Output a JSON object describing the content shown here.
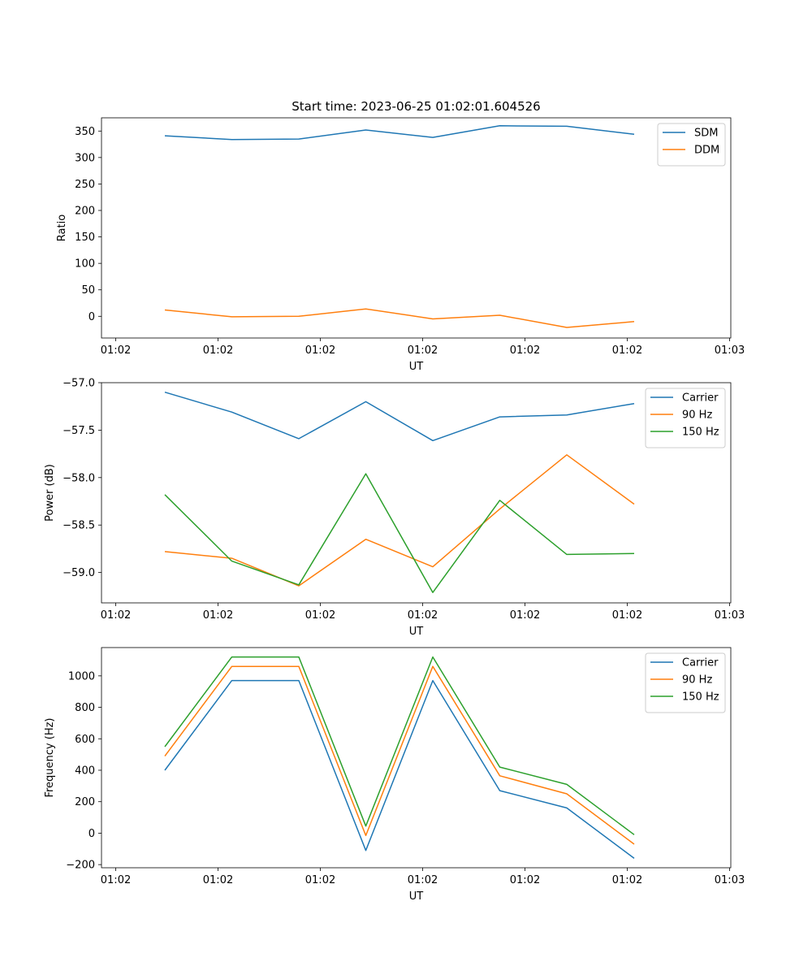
{
  "title": "Start time: 2023-06-25 01:02:01.604526",
  "chart_data": [
    {
      "type": "line",
      "xlabel": "UT",
      "ylabel": "Ratio",
      "x_tick_labels": [
        "01:02",
        "01:02",
        "01:02",
        "01:02",
        "01:02",
        "01:02",
        "01:03"
      ],
      "ylim": [
        -41,
        375
      ],
      "yticks": [
        0,
        50,
        100,
        150,
        200,
        250,
        300,
        350
      ],
      "ytick_labels": [
        "0",
        "50",
        "100",
        "150",
        "200",
        "250",
        "300",
        "350"
      ],
      "legend_position": "top-right",
      "series": [
        {
          "name": "SDM",
          "color": "#1f77b4",
          "values": [
            341,
            334,
            335,
            352,
            338,
            360,
            359,
            344
          ]
        },
        {
          "name": "DDM",
          "color": "#ff7f0e",
          "values": [
            12,
            -1,
            0,
            14,
            -5,
            2,
            -21,
            -10
          ]
        }
      ]
    },
    {
      "type": "line",
      "xlabel": "UT",
      "ylabel": "Power (dB)",
      "x_tick_labels": [
        "01:02",
        "01:02",
        "01:02",
        "01:02",
        "01:02",
        "01:02",
        "01:03"
      ],
      "ylim": [
        -59.32,
        -57.0
      ],
      "yticks": [
        -57.0,
        -57.5,
        -58.0,
        -58.5,
        -59.0
      ],
      "ytick_labels": [
        "−57.0",
        "−57.5",
        "−58.0",
        "−58.5",
        "−59.0"
      ],
      "legend_position": "top-right",
      "series": [
        {
          "name": "Carrier",
          "color": "#1f77b4",
          "values": [
            -57.1,
            -57.31,
            -57.59,
            -57.2,
            -57.61,
            -57.36,
            -57.34,
            -57.22
          ]
        },
        {
          "name": "90 Hz",
          "color": "#ff7f0e",
          "values": [
            -58.78,
            -58.85,
            -59.14,
            -58.65,
            -58.94,
            -58.33,
            -57.76,
            -58.28
          ]
        },
        {
          "name": "150 Hz",
          "color": "#2ca02c",
          "values": [
            -58.18,
            -58.88,
            -59.13,
            -57.96,
            -59.21,
            -58.24,
            -58.81,
            -58.8
          ]
        }
      ]
    },
    {
      "type": "line",
      "xlabel": "UT",
      "ylabel": "Frequency (Hz)",
      "x_tick_labels": [
        "01:02",
        "01:02",
        "01:02",
        "01:02",
        "01:02",
        "01:02",
        "01:03"
      ],
      "ylim": [
        -220,
        1180
      ],
      "yticks": [
        -200,
        0,
        200,
        400,
        600,
        800,
        1000
      ],
      "ytick_labels": [
        "−200",
        "0",
        "200",
        "400",
        "600",
        "800",
        "1000"
      ],
      "legend_position": "top-right",
      "series": [
        {
          "name": "Carrier",
          "color": "#1f77b4",
          "values": [
            400,
            970,
            970,
            -110,
            970,
            270,
            160,
            -160
          ]
        },
        {
          "name": "90 Hz",
          "color": "#ff7f0e",
          "values": [
            490,
            1060,
            1060,
            -15,
            1060,
            365,
            250,
            -70
          ]
        },
        {
          "name": "150 Hz",
          "color": "#2ca02c",
          "values": [
            550,
            1120,
            1120,
            45,
            1120,
            420,
            310,
            -10
          ]
        }
      ]
    }
  ]
}
